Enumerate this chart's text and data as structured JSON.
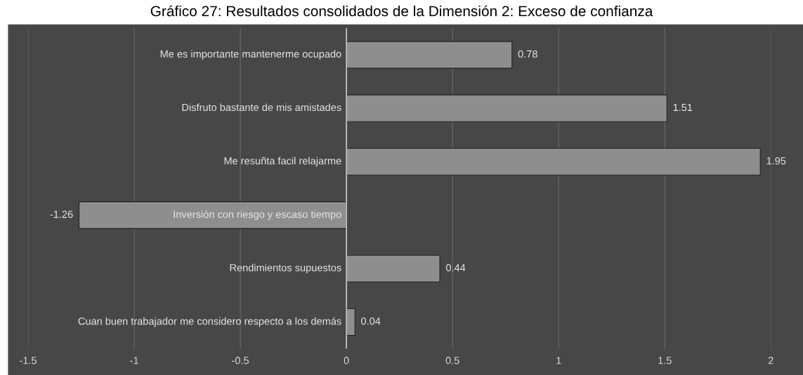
{
  "chart_data": {
    "type": "bar",
    "orientation": "horizontal",
    "title": "Gráfico 27: Resultados consolidados de la Dimensión 2: Exceso de confianza",
    "categories": [
      "Me es importante mantenerme ocupado",
      "Disfruto bastante de mis amistades",
      "Me resuñta facil relajarme",
      "Inversión con riesgo y escaso tiempo",
      "Rendimientos supuestos",
      "Cuan buen trabajador me considero respecto a los demás"
    ],
    "values": [
      0.78,
      1.51,
      1.95,
      -1.26,
      0.44,
      0.04
    ],
    "color": "#8e8e8e",
    "xlim": [
      -1.5,
      2
    ],
    "xticks": [
      -1.5,
      -1,
      -0.5,
      0,
      0.5,
      1,
      1.5,
      2
    ],
    "grid": "x",
    "data_labels": true
  }
}
